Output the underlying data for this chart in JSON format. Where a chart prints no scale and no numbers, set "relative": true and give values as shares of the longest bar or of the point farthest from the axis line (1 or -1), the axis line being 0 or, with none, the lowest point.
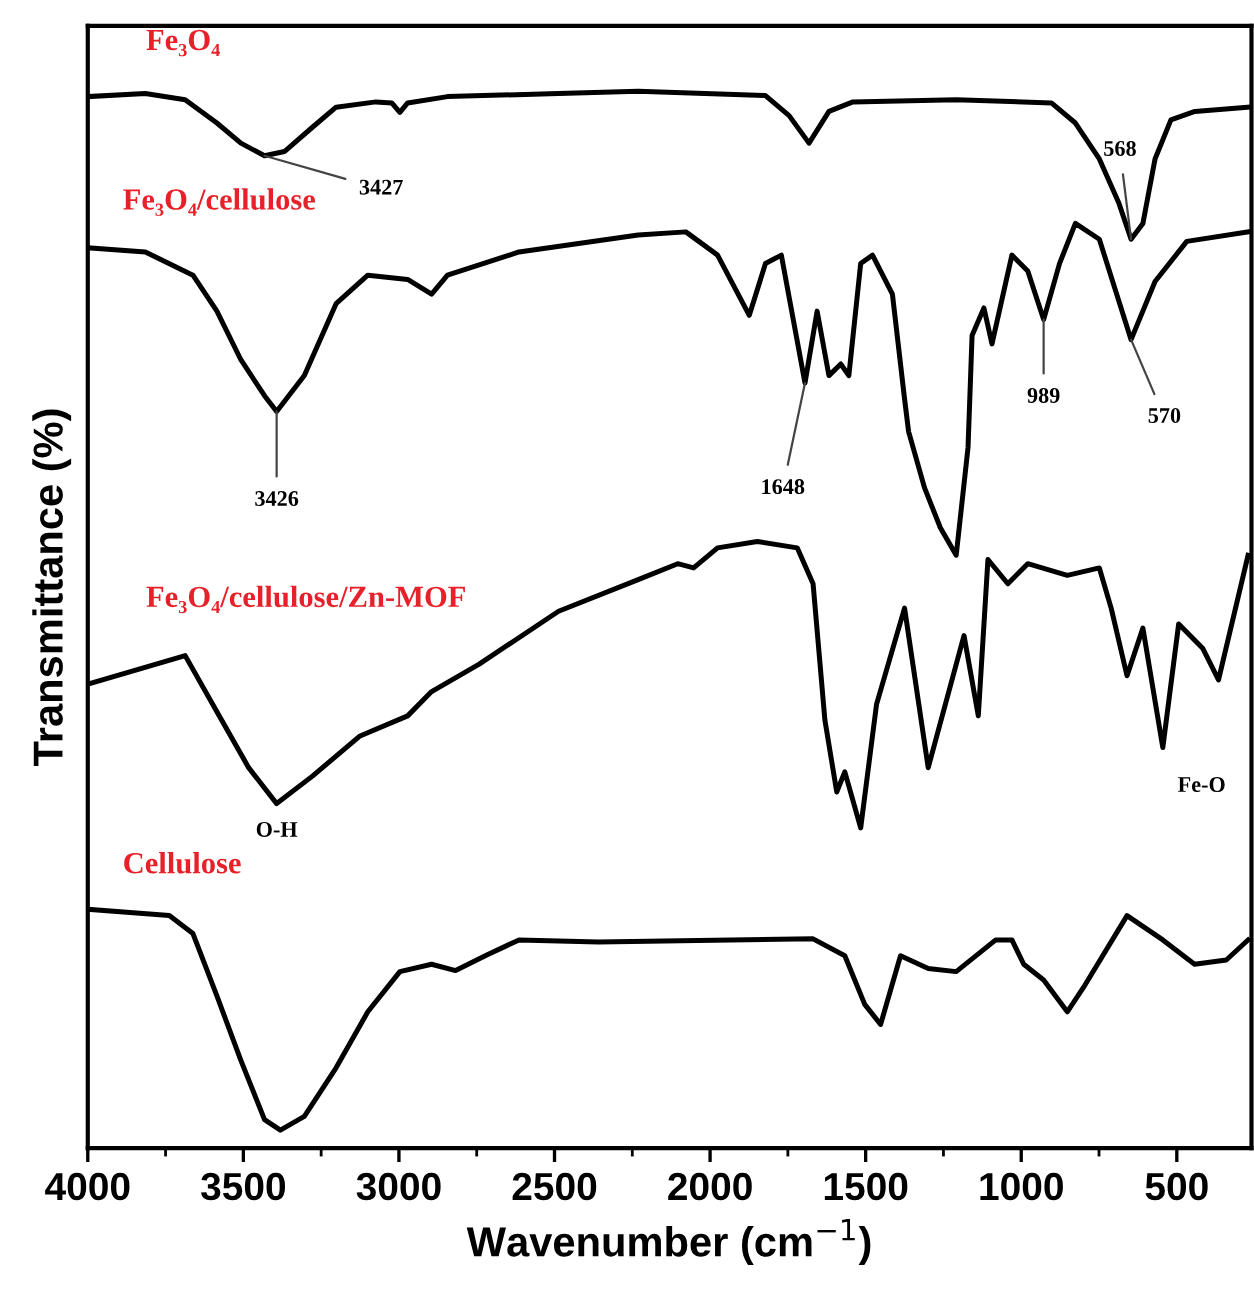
{
  "chart_data": {
    "type": "line",
    "relative": true,
    "xlabel": "Wavenumber (cm$^{−1}$)",
    "ylabel": "Transmittance (%)",
    "xlim": [
      4000,
      260
    ],
    "xticks": [
      4000,
      3500,
      3000,
      2500,
      2000,
      1500,
      1000,
      500
    ],
    "grid": false,
    "legend": false,
    "marker": "none",
    "line_style": "solid",
    "series": [
      {
        "name": "Fe₃O₄",
        "color": "#000000",
        "x": [
          4000,
          3815,
          3687,
          3585,
          3508,
          3432,
          3368,
          3278,
          3202,
          3074,
          3023,
          2997,
          2972,
          2844,
          2487,
          2231,
          1822,
          1746,
          1682,
          1618,
          1541,
          1209,
          903,
          826,
          749,
          686,
          647,
          609,
          570,
          519,
          442,
          271
        ],
        "values": [
          0.995,
          0.998,
          0.992,
          0.97,
          0.951,
          0.939,
          0.943,
          0.966,
          0.985,
          0.99,
          0.989,
          0.98,
          0.989,
          0.995,
          0.998,
          1.0,
          0.996,
          0.977,
          0.951,
          0.981,
          0.99,
          0.992,
          0.989,
          0.97,
          0.936,
          0.894,
          0.86,
          0.875,
          0.936,
          0.973,
          0.981,
          0.985
        ]
      },
      {
        "name": "Fe₃O₄/cellulose",
        "color": "#000000",
        "x": [
          4000,
          3815,
          3662,
          3585,
          3508,
          3432,
          3393,
          3304,
          3202,
          3100,
          2972,
          2895,
          2844,
          2614,
          2231,
          2078,
          1976,
          1874,
          1822,
          1771,
          1695,
          1656,
          1618,
          1580,
          1554,
          1516,
          1478,
          1414,
          1375,
          1362,
          1311,
          1260,
          1209,
          1171,
          1158,
          1120,
          1094,
          1030,
          979,
          928,
          877,
          826,
          749,
          647,
          570,
          468,
          271
        ],
        "values": [
          0.852,
          0.848,
          0.826,
          0.792,
          0.746,
          0.712,
          0.697,
          0.731,
          0.799,
          0.826,
          0.822,
          0.808,
          0.826,
          0.848,
          0.864,
          0.867,
          0.845,
          0.788,
          0.837,
          0.845,
          0.724,
          0.792,
          0.731,
          0.742,
          0.731,
          0.837,
          0.845,
          0.808,
          0.709,
          0.678,
          0.625,
          0.587,
          0.561,
          0.663,
          0.769,
          0.795,
          0.761,
          0.845,
          0.83,
          0.784,
          0.837,
          0.875,
          0.86,
          0.765,
          0.82,
          0.858,
          0.867
        ]
      },
      {
        "name": "Fe₃O₄/cellulose/Zn-MOF",
        "color": "#000000",
        "x": [
          4000,
          3687,
          3585,
          3483,
          3393,
          3278,
          3125,
          2972,
          2895,
          2742,
          2487,
          2231,
          2104,
          2053,
          1976,
          1848,
          1720,
          1669,
          1631,
          1593,
          1567,
          1516,
          1465,
          1375,
          1299,
          1184,
          1138,
          1107,
          1043,
          979,
          852,
          749,
          711,
          660,
          609,
          545,
          494,
          417,
          366,
          271
        ],
        "values": [
          0.439,
          0.466,
          0.413,
          0.36,
          0.326,
          0.352,
          0.39,
          0.409,
          0.432,
          0.458,
          0.508,
          0.538,
          0.553,
          0.549,
          0.568,
          0.574,
          0.568,
          0.534,
          0.405,
          0.337,
          0.356,
          0.303,
          0.42,
          0.511,
          0.36,
          0.485,
          0.409,
          0.557,
          0.534,
          0.553,
          0.542,
          0.549,
          0.511,
          0.447,
          0.492,
          0.379,
          0.496,
          0.473,
          0.443,
          0.561
        ]
      },
      {
        "name": "Cellulose",
        "color": "#000000",
        "x": [
          4000,
          3738,
          3662,
          3585,
          3508,
          3432,
          3381,
          3304,
          3202,
          3100,
          2997,
          2895,
          2818,
          2716,
          2614,
          2359,
          1669,
          1567,
          1503,
          1452,
          1388,
          1299,
          1209,
          1082,
          1030,
          992,
          928,
          852,
          800,
          660,
          545,
          443,
          341,
          271
        ],
        "values": [
          0.226,
          0.22,
          0.203,
          0.144,
          0.083,
          0.027,
          0.017,
          0.03,
          0.076,
          0.129,
          0.167,
          0.174,
          0.168,
          0.183,
          0.197,
          0.195,
          0.198,
          0.182,
          0.136,
          0.117,
          0.182,
          0.17,
          0.167,
          0.197,
          0.197,
          0.174,
          0.159,
          0.129,
          0.152,
          0.22,
          0.197,
          0.174,
          0.178,
          0.197
        ]
      }
    ],
    "annotations": [
      {
        "text": "3427",
        "x": 3432,
        "y": 0.939
      },
      {
        "text": "568",
        "x": 647,
        "y": 0.86
      },
      {
        "text": "3426",
        "x": 3393,
        "y": 0.697
      },
      {
        "text": "1648",
        "x": 1695,
        "y": 0.724
      },
      {
        "text": "989",
        "x": 928,
        "y": 0.784
      },
      {
        "text": "570",
        "x": 647,
        "y": 0.765
      },
      {
        "text": "O-H",
        "x": 3393,
        "y": 0.326
      },
      {
        "text": "Fe-O",
        "x": 545,
        "y": 0.379
      }
    ]
  }
}
